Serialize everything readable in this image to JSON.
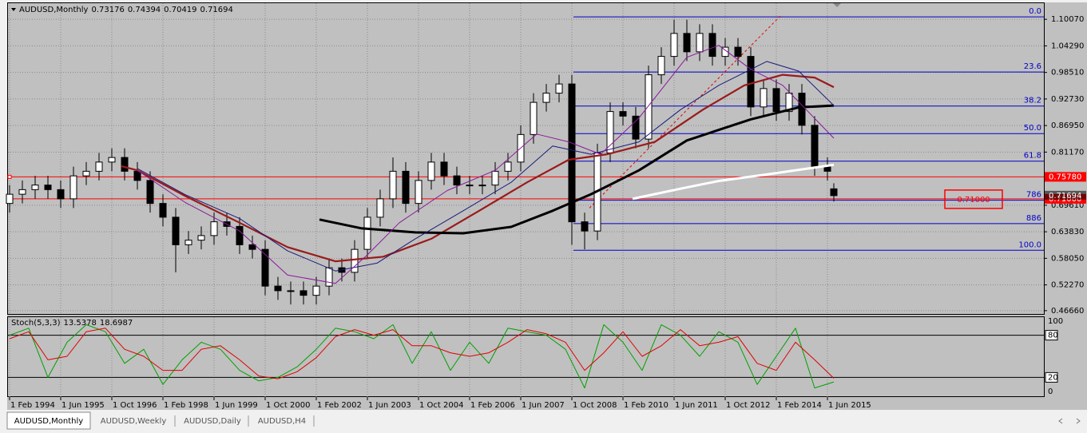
{
  "chart_data": {
    "type": "candlestick",
    "symbol": "AUDUSD,Monthly",
    "header": {
      "open": 0.73176,
      "high": 0.74394,
      "low": 0.70419,
      "close": 0.71694
    },
    "x": [
      0,
      4,
      8,
      12,
      16,
      20,
      24,
      28,
      32,
      36,
      40,
      44,
      48,
      52,
      56,
      60,
      64,
      68,
      72,
      76,
      80,
      84,
      88,
      92,
      96,
      100,
      104,
      108,
      112,
      116,
      120,
      124,
      128,
      132,
      136,
      140,
      144,
      148,
      152,
      156,
      160,
      164,
      168,
      172,
      176,
      180,
      184,
      188,
      192,
      196,
      200,
      204,
      208,
      212,
      216,
      220,
      224,
      228,
      232,
      236,
      240,
      244,
      248,
      252,
      256,
      258
    ],
    "open": [
      0.7,
      0.72,
      0.73,
      0.74,
      0.73,
      0.71,
      0.76,
      0.77,
      0.79,
      0.8,
      0.77,
      0.75,
      0.7,
      0.67,
      0.61,
      0.62,
      0.63,
      0.66,
      0.65,
      0.61,
      0.6,
      0.52,
      0.51,
      0.51,
      0.5,
      0.52,
      0.56,
      0.55,
      0.6,
      0.67,
      0.71,
      0.77,
      0.7,
      0.75,
      0.79,
      0.76,
      0.74,
      0.74,
      0.74,
      0.77,
      0.79,
      0.85,
      0.92,
      0.94,
      0.96,
      0.66,
      0.64,
      0.81,
      0.9,
      0.89,
      0.84,
      0.98,
      1.02,
      1.07,
      1.03,
      1.07,
      1.02,
      1.04,
      1.02,
      0.91,
      0.95,
      0.9,
      0.94,
      0.87,
      0.78,
      0.73176
    ],
    "high": [
      0.74,
      0.75,
      0.76,
      0.76,
      0.75,
      0.78,
      0.79,
      0.81,
      0.82,
      0.82,
      0.79,
      0.77,
      0.72,
      0.69,
      0.64,
      0.65,
      0.68,
      0.68,
      0.67,
      0.63,
      0.62,
      0.54,
      0.53,
      0.53,
      0.54,
      0.58,
      0.58,
      0.62,
      0.69,
      0.73,
      0.8,
      0.79,
      0.77,
      0.81,
      0.81,
      0.78,
      0.76,
      0.76,
      0.79,
      0.81,
      0.87,
      0.94,
      0.96,
      0.98,
      0.98,
      0.68,
      0.83,
      0.92,
      0.92,
      0.91,
      1.0,
      1.04,
      1.1,
      1.1,
      1.09,
      1.09,
      1.06,
      1.06,
      1.04,
      0.97,
      0.97,
      0.96,
      0.96,
      0.89,
      0.8,
      0.74394
    ],
    "low": [
      0.68,
      0.7,
      0.71,
      0.71,
      0.69,
      0.69,
      0.74,
      0.75,
      0.77,
      0.75,
      0.73,
      0.68,
      0.65,
      0.55,
      0.59,
      0.6,
      0.61,
      0.63,
      0.59,
      0.58,
      0.5,
      0.49,
      0.48,
      0.48,
      0.48,
      0.5,
      0.53,
      0.53,
      0.58,
      0.65,
      0.69,
      0.68,
      0.68,
      0.73,
      0.74,
      0.72,
      0.72,
      0.72,
      0.72,
      0.75,
      0.77,
      0.83,
      0.9,
      0.92,
      0.61,
      0.6,
      0.62,
      0.79,
      0.87,
      0.82,
      0.82,
      0.96,
      1.0,
      1.01,
      1.01,
      1.0,
      1.0,
      1.0,
      0.89,
      0.89,
      0.88,
      0.88,
      0.85,
      0.76,
      0.75,
      0.70419
    ],
    "close": [
      0.72,
      0.73,
      0.74,
      0.73,
      0.71,
      0.76,
      0.77,
      0.79,
      0.8,
      0.77,
      0.75,
      0.7,
      0.67,
      0.61,
      0.62,
      0.63,
      0.66,
      0.65,
      0.61,
      0.6,
      0.52,
      0.51,
      0.51,
      0.5,
      0.52,
      0.56,
      0.55,
      0.6,
      0.67,
      0.71,
      0.77,
      0.7,
      0.75,
      0.79,
      0.76,
      0.74,
      0.74,
      0.74,
      0.77,
      0.79,
      0.85,
      0.92,
      0.94,
      0.96,
      0.66,
      0.64,
      0.81,
      0.9,
      0.89,
      0.84,
      0.98,
      1.02,
      1.07,
      1.03,
      1.07,
      1.02,
      1.04,
      1.02,
      0.91,
      0.95,
      0.9,
      0.94,
      0.87,
      0.78,
      0.77,
      0.71694
    ],
    "bull_color": "#ffffff",
    "bear_color": "#000000",
    "xlim": [
      -0.5,
      323.75
    ],
    "xticks": [
      {
        "value": 0,
        "label": "1 Feb 1994"
      },
      {
        "value": 16,
        "label": "1 Jun 1995"
      },
      {
        "value": 32,
        "label": "1 Oct 1996"
      },
      {
        "value": 48,
        "label": "1 Feb 1998"
      },
      {
        "value": 64,
        "label": "1 Jun 1999"
      },
      {
        "value": 80,
        "label": "1 Oct 2000"
      },
      {
        "value": 96,
        "label": "1 Feb 2002"
      },
      {
        "value": 112,
        "label": "1 Jun 2003"
      },
      {
        "value": 128,
        "label": "1 Oct 2004"
      },
      {
        "value": 144,
        "label": "1 Feb 2006"
      },
      {
        "value": 160,
        "label": "1 Jun 2007"
      },
      {
        "value": 176,
        "label": "1 Oct 2008"
      },
      {
        "value": 192,
        "label": "1 Feb 2010"
      },
      {
        "value": 208,
        "label": "1 Jun 2011"
      },
      {
        "value": 224,
        "label": "1 Oct 2012"
      },
      {
        "value": 240,
        "label": "1 Feb 2014"
      },
      {
        "value": 256,
        "label": "1 Jun 2015"
      }
    ],
    "ylim": [
      0.4594,
      1.1358
    ],
    "yticks": [
      {
        "value": 1.1007,
        "label": "1.10070"
      },
      {
        "value": 1.0429,
        "label": "1.04290"
      },
      {
        "value": 0.9851,
        "label": "0.98510"
      },
      {
        "value": 0.9273,
        "label": "0.92730"
      },
      {
        "value": 0.8695,
        "label": "0.86950"
      },
      {
        "value": 0.8117,
        "label": "0.81170"
      },
      {
        "value": 0.6961,
        "label": "0.69610"
      },
      {
        "value": 0.6383,
        "label": "0.63830"
      },
      {
        "value": 0.5805,
        "label": "0.58050"
      },
      {
        "value": 0.5227,
        "label": "0.52270"
      },
      {
        "value": 0.4666,
        "label": "0.46660"
      }
    ],
    "grid": true,
    "moving_averages": [
      {
        "color": "#9a1a1a",
        "width": 2.2,
        "x": [
          35,
          40,
          55,
          72,
          87,
          102,
          117,
          132,
          147,
          162,
          175,
          187,
          202,
          217,
          230,
          242,
          252,
          258
        ],
        "y": [
          0.781,
          0.772,
          0.716,
          0.658,
          0.605,
          0.574,
          0.584,
          0.623,
          0.684,
          0.746,
          0.795,
          0.807,
          0.834,
          0.904,
          0.957,
          0.98,
          0.974,
          0.953
        ]
      },
      {
        "color": "#000000",
        "width": 3,
        "x": [
          97,
          110,
          127,
          142,
          157,
          170,
          182,
          197,
          212,
          222,
          232,
          247,
          258
        ],
        "y": [
          0.665,
          0.646,
          0.637,
          0.635,
          0.649,
          0.684,
          0.72,
          0.772,
          0.837,
          0.86,
          0.883,
          0.909,
          0.913
        ]
      },
      {
        "color": "#ffffff",
        "width": 3,
        "x": [
          195,
          210,
          222,
          237,
          250,
          258
        ],
        "y": [
          0.71,
          0.732,
          0.749,
          0.763,
          0.776,
          0.784
        ]
      },
      {
        "color": "#1a1a7a",
        "width": 1,
        "x": [
          40,
          55,
          72,
          87,
          102,
          115,
          127,
          142,
          157,
          170,
          182,
          197,
          210,
          222,
          237,
          247,
          258
        ],
        "y": [
          0.776,
          0.719,
          0.667,
          0.597,
          0.553,
          0.57,
          0.623,
          0.684,
          0.746,
          0.825,
          0.807,
          0.834,
          0.904,
          0.957,
          1.009,
          0.988,
          0.913
        ]
      },
      {
        "color": "#8a1a9a",
        "width": 1,
        "x": [
          40,
          55,
          72,
          87,
          102,
          112,
          122,
          137,
          152,
          165,
          175,
          185,
          197,
          212,
          222,
          232,
          242,
          258
        ],
        "y": [
          0.772,
          0.702,
          0.64,
          0.544,
          0.526,
          0.588,
          0.658,
          0.728,
          0.772,
          0.851,
          0.834,
          0.807,
          0.886,
          1.018,
          1.044,
          0.992,
          0.957,
          0.842
        ]
      }
    ],
    "trendline": {
      "color": "#e00000",
      "x": [
        181.5,
        241.25
      ],
      "y": [
        0.69,
        1.1077
      ]
    },
    "fib": {
      "color": "#0000c8",
      "x_start": 176.5,
      "labels": [
        "0.0",
        "23.6",
        "38.2",
        "50.0",
        "61.8",
        "786",
        "886",
        "100.0"
      ],
      "prices": [
        1.106,
        0.986,
        0.912,
        0.852,
        0.792,
        0.707,
        0.656,
        0.598
      ]
    },
    "hlines": [
      {
        "value": 0.7578,
        "label": "0.75780"
      },
      {
        "value": 0.71,
        "label": "0.71000"
      }
    ],
    "hline_color": "#ff0000",
    "stoch": {
      "title": "Stoch(5,3,3)",
      "main_value": 13.5378,
      "signal_value": 18.6987,
      "ylim": [
        -8,
        105.7
      ],
      "yticks": [
        100,
        80,
        20,
        0
      ],
      "levels": [
        80,
        20
      ],
      "x": [
        0,
        6,
        12,
        18,
        24,
        30,
        36,
        42,
        48,
        54,
        60,
        66,
        72,
        78,
        84,
        90,
        96,
        102,
        108,
        114,
        120,
        126,
        132,
        138,
        144,
        150,
        156,
        162,
        168,
        174,
        180,
        186,
        192,
        198,
        204,
        210,
        216,
        222,
        228,
        234,
        240,
        246,
        252,
        258
      ],
      "main": {
        "color": "#00a000",
        "values": [
          80,
          90,
          20,
          70,
          95,
          85,
          40,
          60,
          10,
          45,
          70,
          60,
          30,
          15,
          20,
          35,
          60,
          90,
          85,
          75,
          95,
          40,
          85,
          30,
          70,
          40,
          90,
          85,
          80,
          60,
          5,
          95,
          70,
          30,
          95,
          80,
          50,
          85,
          70,
          10,
          50,
          90,
          5,
          13.5378
        ]
      },
      "signal": {
        "color": "#e00000",
        "values": [
          75,
          85,
          45,
          50,
          85,
          90,
          60,
          50,
          30,
          30,
          60,
          65,
          45,
          22,
          18,
          28,
          48,
          78,
          88,
          80,
          88,
          65,
          65,
          55,
          50,
          55,
          70,
          88,
          82,
          70,
          30,
          55,
          85,
          50,
          65,
          88,
          65,
          70,
          78,
          40,
          30,
          70,
          45,
          18.6987
        ]
      }
    },
    "tabs": [
      "AUDUSD,Monthly",
      "AUDUSD,Weekly",
      "AUDUSD,Daily",
      "AUDUSD,H4"
    ]
  }
}
